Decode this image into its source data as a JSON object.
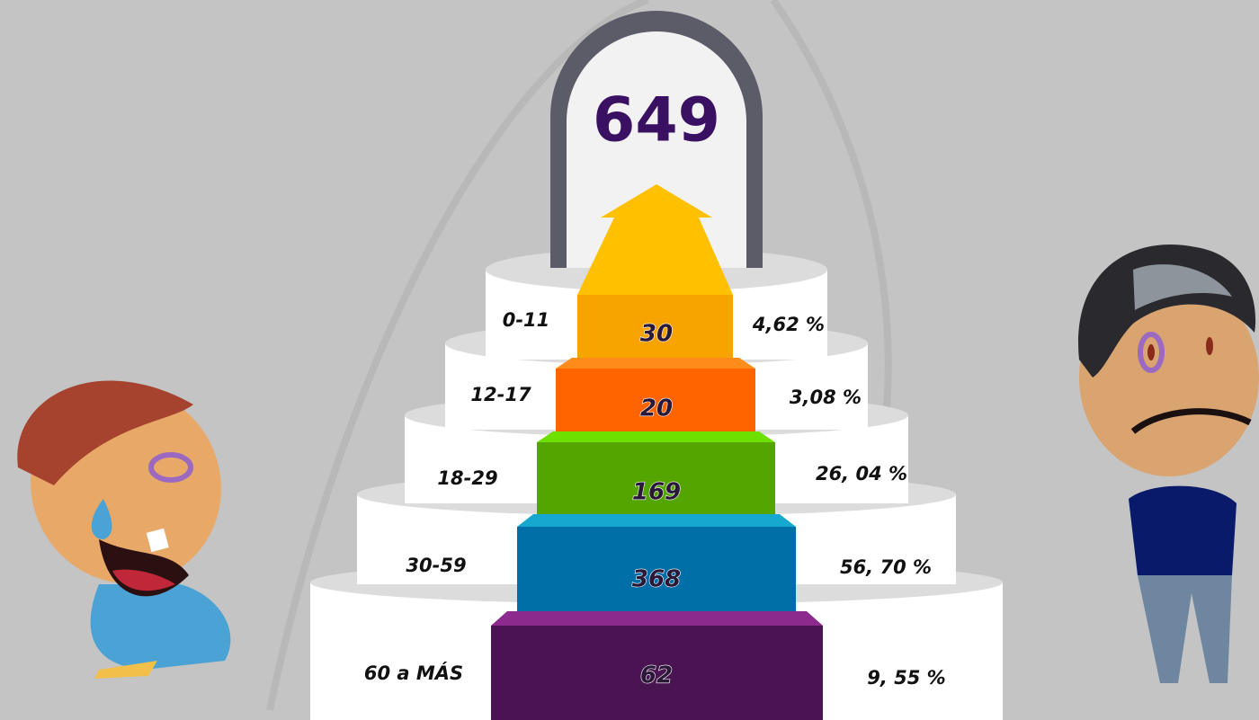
{
  "total": "649",
  "tiers": [
    {
      "age": "0-11",
      "count": "30",
      "percent": "4,62 %",
      "color": "#f7a300",
      "top_color": "#f7a300"
    },
    {
      "age": "12-17",
      "count": "20",
      "percent": "3,08 %",
      "color": "#ff6400",
      "top_color": "#ff8c1a"
    },
    {
      "age": "18-29",
      "count": "169",
      "percent": "26, 04 %",
      "color": "#55a500",
      "top_color": "#6ee000"
    },
    {
      "age": "30-59",
      "count": "368",
      "percent": "56, 70 %",
      "color": "#006fa8",
      "top_color": "#16a8cf"
    },
    {
      "age": "60 a MÁS",
      "count": "62",
      "percent": "9, 55 %",
      "color": "#4a1452",
      "top_color": "#8c2a8e"
    }
  ]
}
